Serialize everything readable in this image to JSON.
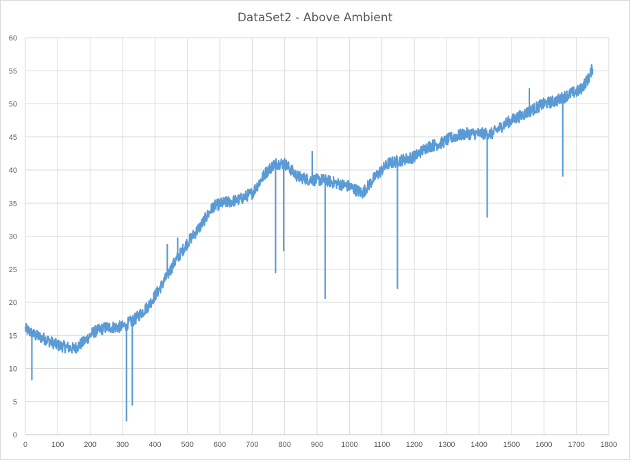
{
  "chart_data": {
    "type": "line",
    "title": "DataSet2 - Above Ambient",
    "xlabel": "",
    "ylabel": "",
    "xlim": [
      0,
      1800
    ],
    "ylim": [
      0,
      60
    ],
    "x_ticks": [
      0,
      100,
      200,
      300,
      400,
      500,
      600,
      700,
      800,
      900,
      1000,
      1100,
      1200,
      1300,
      1400,
      1500,
      1600,
      1700,
      1800
    ],
    "y_ticks": [
      0,
      5,
      10,
      15,
      20,
      25,
      30,
      35,
      40,
      45,
      50,
      55,
      60
    ],
    "grid": true,
    "legend": "none",
    "series_color": "#5b9bd5",
    "noise_amplitude": 0.9,
    "trend": {
      "x": [
        0,
        30,
        60,
        100,
        150,
        180,
        210,
        250,
        300,
        340,
        380,
        420,
        460,
        500,
        540,
        580,
        610,
        660,
        700,
        740,
        770,
        800,
        840,
        880,
        920,
        960,
        1000,
        1040,
        1080,
        1120,
        1160,
        1200,
        1240,
        1280,
        1320,
        1360,
        1400,
        1440,
        1480,
        1520,
        1560,
        1600,
        1640,
        1680,
        1710,
        1740,
        1750
      ],
      "y": [
        16,
        15,
        14.5,
        13.5,
        13,
        14,
        15.5,
        16.2,
        16.3,
        17.5,
        19.5,
        22.5,
        26,
        29,
        31.5,
        34.5,
        35,
        35.5,
        36.5,
        39.5,
        41,
        41,
        39,
        38.5,
        38.5,
        38,
        37.5,
        36.5,
        39,
        41,
        41.5,
        42,
        43.5,
        44,
        45,
        45.5,
        45.5,
        45.5,
        47,
        48,
        49,
        50,
        50.5,
        51.5,
        52,
        54,
        55.5
      ]
    },
    "spikes": [
      {
        "x": 20,
        "y": 8.3
      },
      {
        "x": 312,
        "y": 2.1
      },
      {
        "x": 330,
        "y": 4.5
      },
      {
        "x": 438,
        "y": 28.7
      },
      {
        "x": 470,
        "y": 29.7
      },
      {
        "x": 772,
        "y": 24.5
      },
      {
        "x": 797,
        "y": 27.8
      },
      {
        "x": 885,
        "y": 42.8
      },
      {
        "x": 925,
        "y": 20.6
      },
      {
        "x": 1148,
        "y": 22.1
      },
      {
        "x": 1425,
        "y": 32.9
      },
      {
        "x": 1555,
        "y": 52.3
      },
      {
        "x": 1658,
        "y": 39.1
      }
    ]
  }
}
